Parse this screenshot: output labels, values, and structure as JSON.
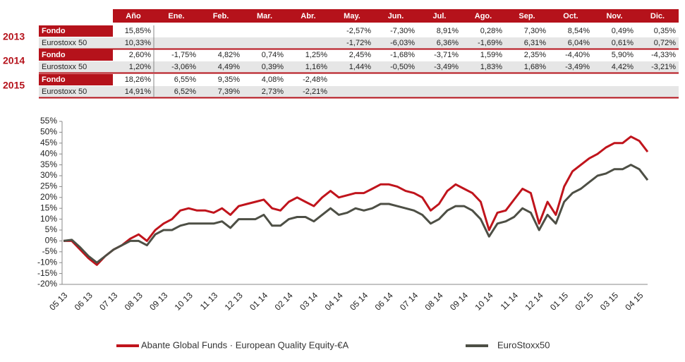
{
  "table": {
    "header": [
      "Año",
      "Ene.",
      "Feb.",
      "Mar.",
      "Abr.",
      "May.",
      "Jun.",
      "Jul.",
      "Ago.",
      "Sep.",
      "Oct.",
      "Nov.",
      "Dic."
    ],
    "groups": [
      {
        "year": "2013",
        "rows": [
          {
            "label": "Fondo",
            "cells": [
              "15,85%",
              null,
              null,
              null,
              null,
              "-2,57%",
              "-7,30%",
              "8,91%",
              "0,28%",
              "7,30%",
              "8,54%",
              "0,49%",
              "0,35%"
            ]
          },
          {
            "label": "Eurostoxx 50",
            "cells": [
              "10,33%",
              null,
              null,
              null,
              null,
              "-1,72%",
              "-6,03%",
              "6,36%",
              "-1,69%",
              "6,31%",
              "6,04%",
              "0,61%",
              "0,72%"
            ]
          }
        ]
      },
      {
        "year": "2014",
        "rows": [
          {
            "label": "Fondo",
            "cells": [
              "2,60%",
              "-1,75%",
              "4,82%",
              "0,74%",
              "1,25%",
              "2,45%",
              "-1,68%",
              "-3,71%",
              "1,59%",
              "2,35%",
              "-4,40%",
              "5,90%",
              "-4,33%"
            ]
          },
          {
            "label": "Eurostoxx 50",
            "cells": [
              "1,20%",
              "-3,06%",
              "4,49%",
              "0,39%",
              "1,16%",
              "1,44%",
              "-0,50%",
              "-3,49%",
              "1,83%",
              "1,68%",
              "-3,49%",
              "4,42%",
              "-3,21%"
            ]
          }
        ]
      },
      {
        "year": "2015",
        "rows": [
          {
            "label": "Fondo",
            "cells": [
              "18,26%",
              "6,55%",
              "9,35%",
              "4,08%",
              "-2,48%",
              null,
              null,
              null,
              null,
              null,
              null,
              null,
              null
            ]
          },
          {
            "label": "Eurostoxx 50",
            "cells": [
              "14,91%",
              "6,52%",
              "7,39%",
              "2,73%",
              "-2,21%",
              null,
              null,
              null,
              null,
              null,
              null,
              null,
              null
            ]
          }
        ]
      }
    ]
  },
  "chart_data": {
    "type": "line",
    "x": [
      "05 13",
      null,
      null,
      "06 13",
      null,
      null,
      "07 13",
      null,
      null,
      "08 13",
      null,
      null,
      "09 13",
      null,
      null,
      "10 13",
      null,
      null,
      "11 13",
      null,
      null,
      "12 13",
      null,
      null,
      "01 14",
      null,
      null,
      "02 14",
      null,
      null,
      "03 14",
      null,
      null,
      "04 14",
      null,
      null,
      "05 14",
      null,
      null,
      "06 14",
      null,
      null,
      "07 14",
      null,
      null,
      "08 14",
      null,
      null,
      "09 14",
      null,
      null,
      "10 14",
      null,
      null,
      "11 14",
      null,
      null,
      "12 14",
      null,
      null,
      "01 15",
      null,
      null,
      "02 15",
      null,
      null,
      "03 15",
      null,
      null,
      "04 15",
      null
    ],
    "series": [
      {
        "name": "Abante Global Funds · European Quality Equity-€A",
        "color": "#c0141c",
        "values": [
          0,
          0,
          -4,
          -8,
          -11,
          -7,
          -4,
          -2,
          1,
          3,
          0,
          5,
          8,
          10,
          14,
          15,
          14,
          14,
          13,
          15,
          12,
          16,
          17,
          18,
          19,
          15,
          14,
          18,
          20,
          18,
          16,
          20,
          23,
          20,
          21,
          22,
          22,
          24,
          26,
          26,
          25,
          23,
          22,
          20,
          14,
          17,
          23,
          26,
          24,
          22,
          18,
          5,
          13,
          14,
          19,
          24,
          22,
          8,
          18,
          12,
          25,
          32,
          35,
          38,
          40,
          43,
          45,
          45,
          48,
          46,
          41
        ]
      },
      {
        "name": "EuroStoxx50",
        "color": "#4d4f45",
        "values": [
          0,
          0.5,
          -3,
          -7,
          -10,
          -7,
          -4,
          -2,
          0,
          0,
          -2,
          3,
          5,
          5,
          7,
          8,
          8,
          8,
          8,
          9,
          6,
          10,
          10,
          10,
          12,
          7,
          7,
          10,
          11,
          11,
          9,
          12,
          15,
          12,
          13,
          15,
          14,
          15,
          17,
          17,
          16,
          15,
          14,
          12,
          8,
          10,
          14,
          16,
          16,
          14,
          10,
          2,
          8,
          9,
          11,
          15,
          13,
          5,
          12,
          8,
          18,
          22,
          24,
          27,
          30,
          31,
          33,
          33,
          35,
          33,
          28
        ]
      }
    ],
    "ylim": [
      -20,
      55
    ],
    "yticks": [
      {
        "value": -20,
        "label": "-20%"
      },
      {
        "value": -15,
        "label": "-15%"
      },
      {
        "value": -10,
        "label": "-10%"
      },
      {
        "value": -5,
        "label": "-5%"
      },
      {
        "value": 0,
        "label": "0%"
      },
      {
        "value": 5,
        "label": "5%"
      },
      {
        "value": 10,
        "label": "10%"
      },
      {
        "value": 15,
        "label": "15%"
      },
      {
        "value": 20,
        "label": "20%"
      },
      {
        "value": 25,
        "label": "25%"
      },
      {
        "value": 30,
        "label": "30%"
      },
      {
        "value": 35,
        "label": "35%"
      },
      {
        "value": 40,
        "label": "40%"
      },
      {
        "value": 45,
        "label": "45%"
      },
      {
        "value": 50,
        "label": "50%"
      },
      {
        "value": 55,
        "label": "55%"
      }
    ],
    "grid": false,
    "legend": "bottom"
  }
}
